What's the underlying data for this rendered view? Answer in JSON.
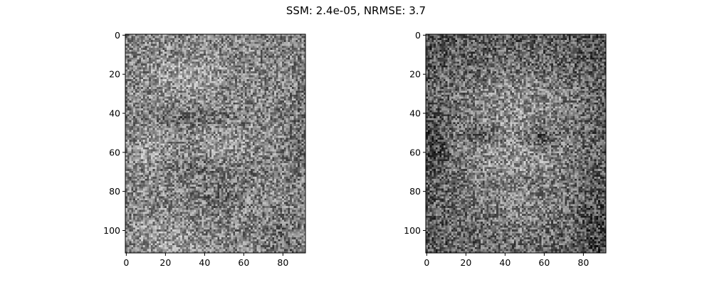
{
  "chart_data": {
    "type": "heatmap",
    "title": "SSM: 2.4e-05, NRMSE: 3.7",
    "colormap": "gray",
    "panels": [
      {
        "name": "",
        "xlim": [
          0,
          92
        ],
        "ylim": [
          112,
          0
        ],
        "xticks": [
          0,
          20,
          40,
          60,
          80
        ],
        "yticks": [
          0,
          20,
          40,
          60,
          80,
          100
        ],
        "xtick_labels": [
          "0",
          "20",
          "40",
          "60",
          "80"
        ],
        "ytick_labels": [
          "0",
          "20",
          "40",
          "60",
          "80",
          "100"
        ]
      },
      {
        "name": "",
        "xlim": [
          0,
          92
        ],
        "ylim": [
          112,
          0
        ],
        "xticks": [
          0,
          20,
          40,
          60,
          80
        ],
        "yticks": [
          0,
          20,
          40,
          60,
          80,
          100
        ],
        "xtick_labels": [
          "0",
          "20",
          "40",
          "60",
          "80"
        ],
        "ytick_labels": [
          "0",
          "20",
          "40",
          "60",
          "80",
          "100"
        ]
      }
    ]
  }
}
